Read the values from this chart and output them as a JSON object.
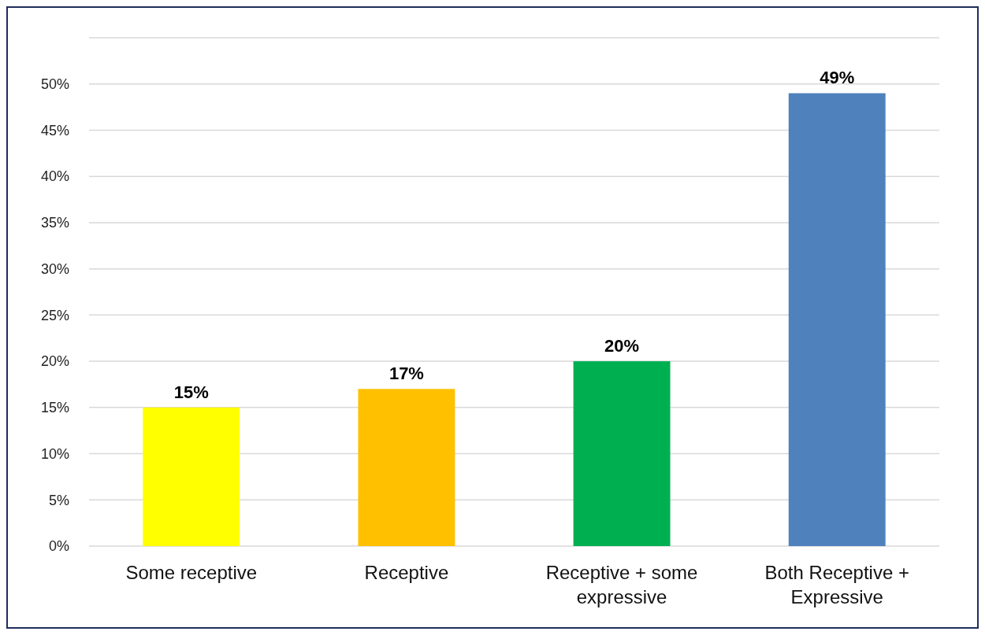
{
  "chart_data": {
    "type": "bar",
    "categories": [
      "Some receptive",
      "Receptive",
      "Receptive + some expressive",
      "Both Receptive + Expressive"
    ],
    "values": [
      15,
      17,
      20,
      49
    ],
    "colors": [
      "#ffff00",
      "#ffc000",
      "#00b050",
      "#4f81bd"
    ],
    "value_labels": [
      "15%",
      "17%",
      "20%",
      "49%"
    ],
    "ylim": [
      0,
      55
    ],
    "yticks": [
      {
        "value": 0,
        "label": "0%"
      },
      {
        "value": 5,
        "label": "5%"
      },
      {
        "value": 10,
        "label": "10%"
      },
      {
        "value": 15,
        "label": "15%"
      },
      {
        "value": 20,
        "label": "20%"
      },
      {
        "value": 25,
        "label": "25%"
      },
      {
        "value": 30,
        "label": "30%"
      },
      {
        "value": 35,
        "label": "35%"
      },
      {
        "value": 40,
        "label": "40%"
      },
      {
        "value": 45,
        "label": "45%"
      },
      {
        "value": 50,
        "label": "50%"
      },
      {
        "value": 55,
        "label": null
      }
    ],
    "grid": "y"
  }
}
